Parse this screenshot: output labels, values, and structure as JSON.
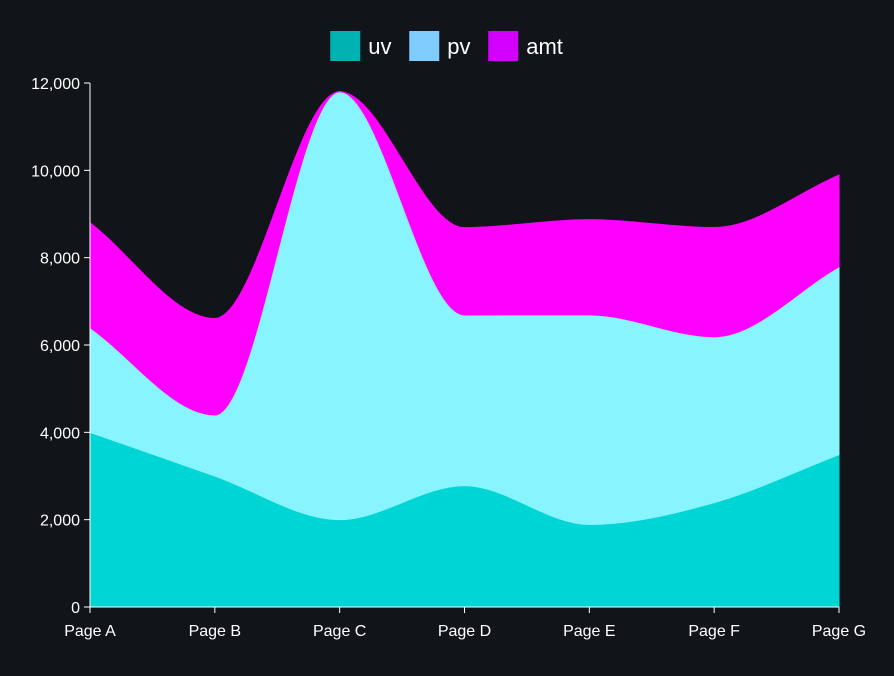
{
  "chart_data": {
    "type": "area",
    "stacked": true,
    "curve": "smooth",
    "categories": [
      "Page A",
      "Page B",
      "Page C",
      "Page D",
      "Page E",
      "Page F",
      "Page G"
    ],
    "series": [
      {
        "name": "uv",
        "values": [
          4000,
          3000,
          2000,
          2780,
          1890,
          2390,
          3490
        ],
        "fill": "#00d5d5",
        "legend_color": "#00b2b2"
      },
      {
        "name": "pv",
        "values": [
          2400,
          1398,
          9800,
          3908,
          4800,
          3800,
          4300
        ],
        "fill": "#88f4ff",
        "legend_color": "#7fccff"
      },
      {
        "name": "amt",
        "values": [
          2400,
          2210,
          0,
          2000,
          2181,
          2500,
          2100
        ],
        "fill": "#ff00ff",
        "legend_color": "#d400ff"
      }
    ],
    "ylim": [
      0,
      12000
    ],
    "yticks": [
      0,
      2000,
      4000,
      6000,
      8000,
      10000,
      12000
    ],
    "ytick_labels": [
      "0",
      "2,000",
      "4,000",
      "6,000",
      "8,000",
      "10,000",
      "12,000"
    ],
    "xlabel": "",
    "ylabel": "",
    "legend_position": "top-center",
    "background": "#111418",
    "axis_color": "#ffffff",
    "text_color": "#ffffff"
  }
}
